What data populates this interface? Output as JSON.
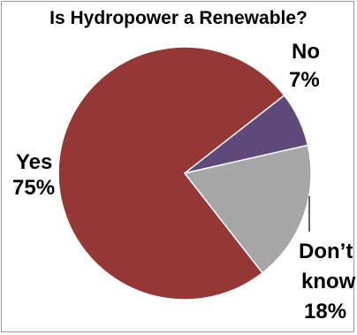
{
  "chart_data": {
    "type": "pie",
    "title": "Is Hydropower a Renewable?",
    "slices": [
      {
        "label": "Yes",
        "value": 75,
        "value_text": "75%",
        "color": "#953735"
      },
      {
        "label": "No",
        "value": 7,
        "value_text": "7%",
        "color": "#5f497a"
      },
      {
        "label": "Don’t know",
        "value": 18,
        "value_text": "18%",
        "color": "#a6a6a6"
      }
    ],
    "label_lines": {
      "dont_know": [
        "Don’t",
        "know"
      ]
    },
    "legend": "none",
    "slice_border_color": "#ffffff"
  }
}
